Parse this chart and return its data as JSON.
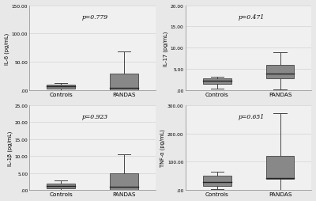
{
  "subplots": [
    {
      "title": "p=0.779",
      "ylabel": "IL-6 (pg/mL)",
      "ylim": [
        0,
        150
      ],
      "yticks": [
        0,
        50.0,
        100.0,
        150.0
      ],
      "ytick_labels": [
        ".00",
        "50.00",
        "100.00",
        "150.00"
      ],
      "groups": [
        "Controls",
        "PANDAS"
      ],
      "controls": {
        "q1": 3.0,
        "median": 7.0,
        "q3": 10.0,
        "whisker_low": 1.0,
        "whisker_high": 13.0
      },
      "pandas": {
        "q1": 0.0,
        "median": 5.0,
        "q3": 30.0,
        "whisker_low": 0.0,
        "whisker_high": 68.0
      }
    },
    {
      "title": "p=0.471",
      "ylabel": "IL-17 (pg/mL)",
      "ylim": [
        0,
        20
      ],
      "yticks": [
        0,
        5.0,
        10.0,
        15.0,
        20.0
      ],
      "ytick_labels": [
        ".00",
        "5.00",
        "10.00",
        "15.00",
        "20.00"
      ],
      "groups": [
        "Controls",
        "PANDAS"
      ],
      "controls": {
        "q1": 1.5,
        "median": 2.2,
        "q3": 2.8,
        "whisker_low": 0.5,
        "whisker_high": 3.2
      },
      "pandas": {
        "q1": 2.8,
        "median": 4.0,
        "q3": 6.0,
        "whisker_low": 0.2,
        "whisker_high": 9.0
      }
    },
    {
      "title": "p=0.923",
      "ylabel": "IL-1β (pg/mL)",
      "ylim": [
        0,
        25
      ],
      "yticks": [
        0,
        5.0,
        10.0,
        15.0,
        20.0,
        25.0
      ],
      "ytick_labels": [
        ".00",
        "5.00",
        "10.00",
        "15.00",
        "20.00",
        "25.00"
      ],
      "groups": [
        "Controls",
        "PANDAS"
      ],
      "controls": {
        "q1": 0.5,
        "median": 1.2,
        "q3": 2.0,
        "whisker_low": 0.0,
        "whisker_high": 2.8
      },
      "pandas": {
        "q1": 0.0,
        "median": 1.0,
        "q3": 5.0,
        "whisker_low": 0.0,
        "whisker_high": 10.5
      }
    },
    {
      "title": "p=0.651",
      "ylabel": "TNF-α (pg/mL)",
      "ylim": [
        0,
        300
      ],
      "yticks": [
        0,
        100.0,
        200.0,
        300.0
      ],
      "ytick_labels": [
        ".00",
        "100.00",
        "200.00",
        "300.00"
      ],
      "groups": [
        "Controls",
        "PANDAS"
      ],
      "controls": {
        "q1": 15.0,
        "median": 30.0,
        "q3": 50.0,
        "whisker_low": 5.0,
        "whisker_high": 65.0
      },
      "pandas": {
        "q1": 40.0,
        "median": 42.0,
        "q3": 120.0,
        "whisker_low": 0.0,
        "whisker_high": 270.0
      }
    }
  ],
  "box_facecolor": "#888888",
  "box_edgecolor": "#444444",
  "median_color": "#222222",
  "whisker_color": "#444444",
  "bg_color": "#f0f0f0",
  "grid_color": "#d8d8d8",
  "fig_bg": "#e8e8e8"
}
